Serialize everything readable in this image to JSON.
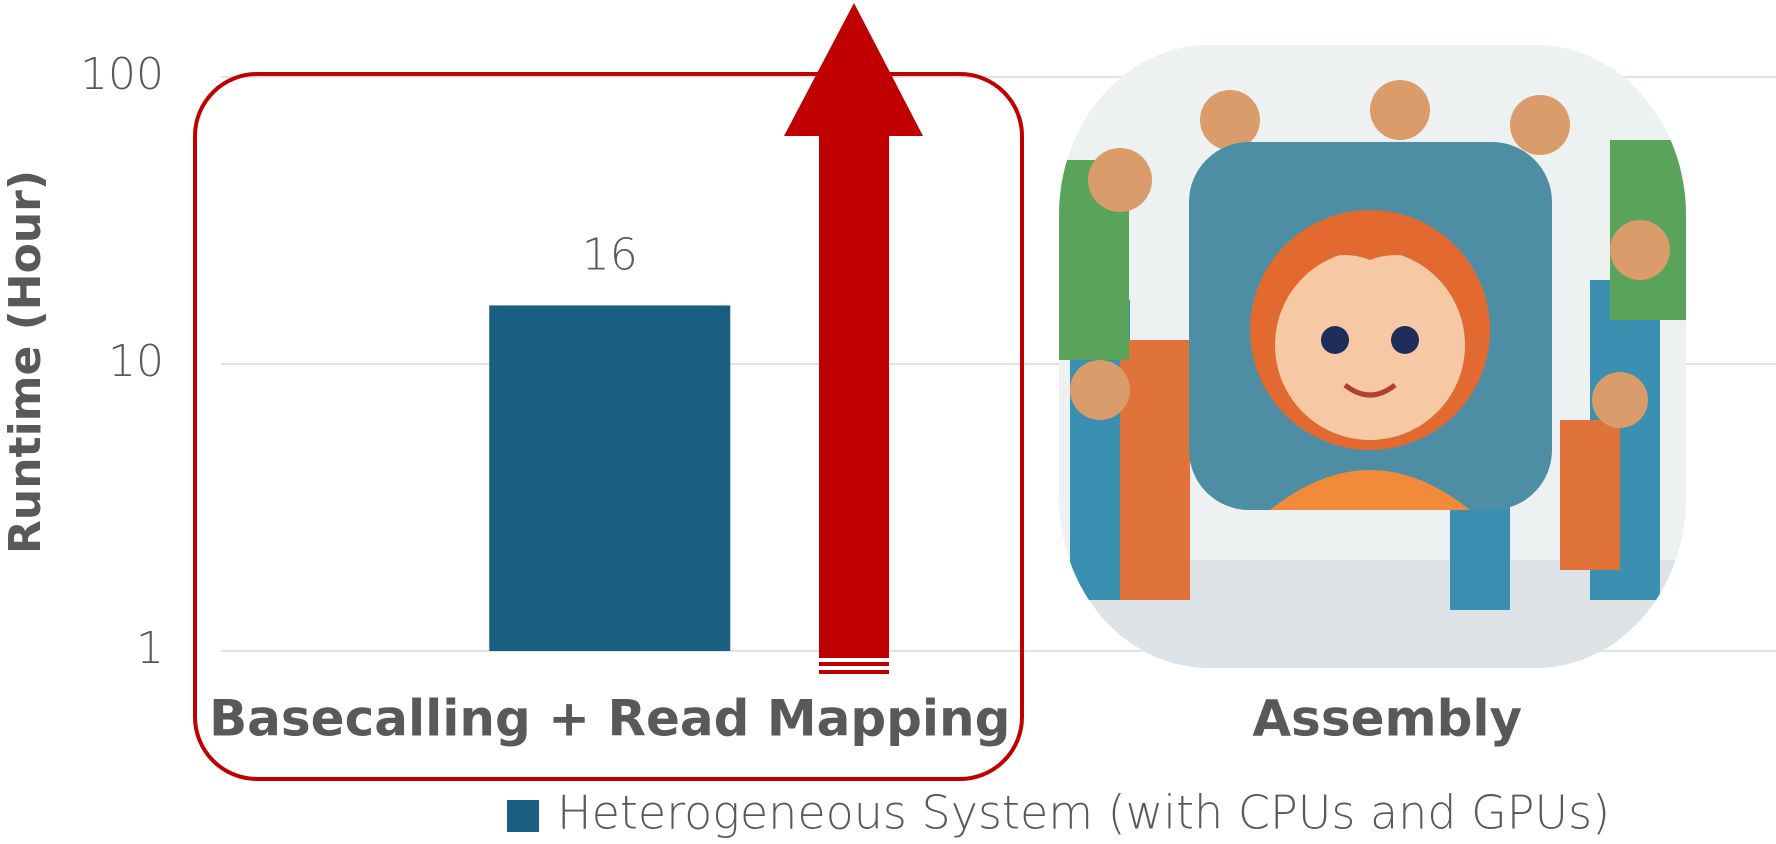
{
  "chart_data": {
    "type": "bar",
    "categories": [
      "Basecalling + Read Mapping",
      "Assembly"
    ],
    "series": [
      {
        "name": "Heterogeneous System (with CPUs and GPUs)",
        "color": "#1a5e82",
        "values": [
          16,
          null
        ]
      }
    ],
    "y_label": "Runtime (Hour)",
    "ylim": [
      1,
      100
    ],
    "yticks": [
      1,
      10,
      100
    ],
    "log_scale": true,
    "grid": true,
    "legend": "bottom"
  }
}
